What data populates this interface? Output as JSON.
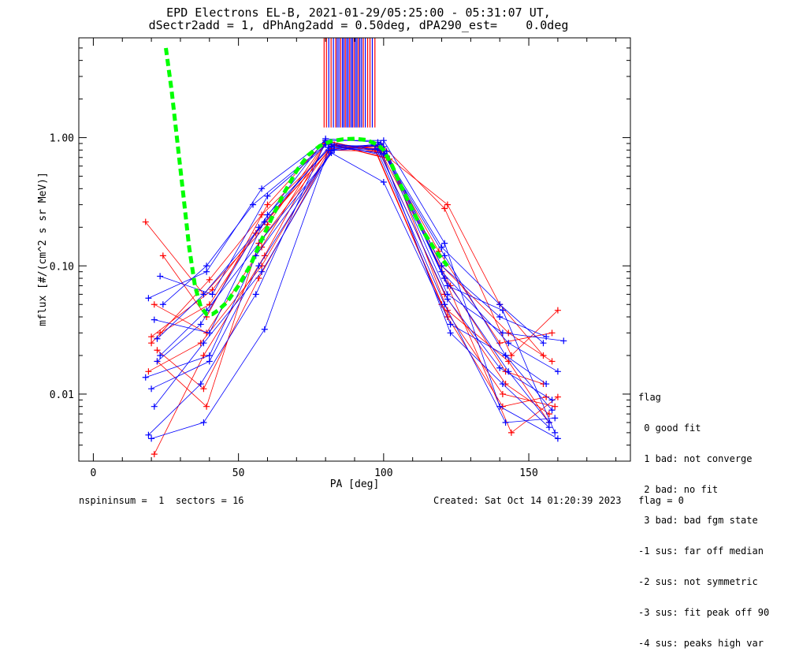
{
  "chart_data": {
    "type": "line",
    "title": "EPD Electrons EL-B, 2021-01-29/05:25:00 - 05:31:07 UT,",
    "subtitle": "dSectr2add = 1, dPhAng2add = 0.50deg, dPA290_est=    0.0deg",
    "xlabel": "PA [deg]",
    "ylabel": "mflux [#/(cm^2 s sr MeV)]",
    "xlim": [
      -5,
      185
    ],
    "ylim": [
      0.003,
      6
    ],
    "yscale": "log",
    "xticks": [
      0,
      50,
      100,
      150
    ],
    "yticks": [
      0.01,
      0.1,
      1.0
    ],
    "yticklabels": [
      "0.01",
      "0.10",
      "1.00"
    ],
    "xticklabels": [
      "0",
      "50",
      "100",
      "150"
    ],
    "colors": {
      "red": "#ff0000",
      "blue": "#0000ff",
      "green": "#00ff00"
    },
    "fit_curve": {
      "color": "#00ff00",
      "x": [
        25,
        27,
        29,
        31,
        33,
        35,
        37,
        39,
        41,
        43,
        46,
        50,
        54,
        58,
        62,
        66,
        70,
        74,
        78,
        82,
        86,
        90,
        94,
        98,
        100,
        103,
        106,
        110,
        114,
        118,
        122
      ],
      "y": [
        5.0,
        2.3,
        0.9,
        0.36,
        0.14,
        0.07,
        0.048,
        0.042,
        0.042,
        0.045,
        0.052,
        0.07,
        0.1,
        0.16,
        0.25,
        0.38,
        0.55,
        0.73,
        0.86,
        0.94,
        0.97,
        0.98,
        0.96,
        0.88,
        0.8,
        0.6,
        0.42,
        0.27,
        0.18,
        0.13,
        0.1
      ]
    },
    "series": [
      {
        "color": "#ff0000",
        "x": [
          18,
          38,
          60,
          80,
          100,
          121,
          144,
          160
        ],
        "y": [
          0.22,
          0.06,
          0.21,
          0.92,
          0.8,
          0.08,
          0.005,
          0.0095
        ]
      },
      {
        "color": "#ff0000",
        "x": [
          20,
          40,
          58,
          81,
          99,
          122,
          140,
          155
        ],
        "y": [
          0.025,
          0.078,
          0.25,
          0.8,
          0.78,
          0.3,
          0.05,
          0.02
        ]
      },
      {
        "color": "#ff0000",
        "x": [
          22,
          39,
          57,
          82,
          98,
          121,
          142,
          157
        ],
        "y": [
          0.018,
          0.008,
          0.15,
          0.85,
          0.84,
          0.06,
          0.012,
          0.007
        ]
      },
      {
        "color": "#ff0000",
        "x": [
          21,
          38,
          59,
          80,
          101,
          120,
          143,
          158
        ],
        "y": [
          0.0034,
          0.02,
          0.12,
          0.9,
          0.7,
          0.1,
          0.03,
          0.018
        ]
      },
      {
        "color": "#ff0000",
        "x": [
          23,
          40,
          56,
          83,
          97,
          122,
          141,
          156
        ],
        "y": [
          0.03,
          0.05,
          0.18,
          0.88,
          0.82,
          0.04,
          0.008,
          0.0095
        ]
      },
      {
        "color": "#ff0000",
        "x": [
          19,
          37,
          58,
          81,
          99,
          121,
          144,
          160
        ],
        "y": [
          0.015,
          0.025,
          0.1,
          0.78,
          0.9,
          0.28,
          0.02,
          0.045
        ]
      },
      {
        "color": "#ff0000",
        "x": [
          24,
          39,
          60,
          80,
          100,
          119,
          140,
          158
        ],
        "y": [
          0.12,
          0.04,
          0.3,
          0.95,
          0.75,
          0.13,
          0.025,
          0.03
        ]
      },
      {
        "color": "#ff0000",
        "x": [
          22,
          38,
          57,
          82,
          98,
          123,
          142,
          155
        ],
        "y": [
          0.022,
          0.011,
          0.08,
          0.82,
          0.86,
          0.07,
          0.015,
          0.012
        ]
      },
      {
        "color": "#ff0000",
        "x": [
          20,
          41,
          59,
          83,
          97,
          120,
          141,
          159
        ],
        "y": [
          0.028,
          0.065,
          0.22,
          0.87,
          0.8,
          0.05,
          0.01,
          0.008
        ]
      },
      {
        "color": "#ff0000",
        "x": [
          21,
          39,
          58,
          80,
          102,
          122,
          143,
          157
        ],
        "y": [
          0.05,
          0.03,
          0.14,
          0.91,
          0.68,
          0.045,
          0.018,
          0.006
        ]
      },
      {
        "color": "#0000ff",
        "x": [
          19,
          39,
          58,
          80,
          100,
          121,
          140,
          160
        ],
        "y": [
          0.056,
          0.09,
          0.4,
          0.95,
          0.95,
          0.15,
          0.008,
          0.0045
        ]
      },
      {
        "color": "#0000ff",
        "x": [
          20,
          38,
          59,
          81,
          99,
          122,
          141,
          159
        ],
        "y": [
          0.0045,
          0.006,
          0.032,
          0.8,
          0.9,
          0.07,
          0.045,
          0.005
        ]
      },
      {
        "color": "#0000ff",
        "x": [
          18,
          40,
          56,
          82,
          100,
          123,
          142,
          158
        ],
        "y": [
          0.0135,
          0.02,
          0.12,
          0.76,
          0.45,
          0.035,
          0.02,
          0.0075
        ]
      },
      {
        "color": "#0000ff",
        "x": [
          22,
          37,
          57,
          80,
          98,
          120,
          140,
          155
        ],
        "y": [
          0.018,
          0.035,
          0.2,
          0.98,
          0.92,
          0.14,
          0.05,
          0.025
        ]
      },
      {
        "color": "#0000ff",
        "x": [
          23,
          41,
          60,
          81,
          101,
          121,
          143,
          157
        ],
        "y": [
          0.083,
          0.06,
          0.35,
          0.9,
          0.72,
          0.08,
          0.015,
          0.006
        ]
      },
      {
        "color": "#0000ff",
        "x": [
          21,
          38,
          58,
          83,
          99,
          122,
          141,
          162
        ],
        "y": [
          0.008,
          0.025,
          0.09,
          0.85,
          0.88,
          0.06,
          0.03,
          0.026
        ]
      },
      {
        "color": "#0000ff",
        "x": [
          24,
          39,
          55,
          80,
          100,
          120,
          140,
          156
        ],
        "y": [
          0.05,
          0.1,
          0.3,
          0.88,
          0.85,
          0.1,
          0.04,
          0.028
        ]
      },
      {
        "color": "#0000ff",
        "x": [
          20,
          40,
          57,
          82,
          97,
          121,
          142,
          159
        ],
        "y": [
          0.011,
          0.018,
          0.1,
          0.79,
          0.87,
          0.05,
          0.006,
          0.0065
        ]
      },
      {
        "color": "#0000ff",
        "x": [
          22,
          38,
          59,
          81,
          99,
          123,
          141,
          157
        ],
        "y": [
          0.027,
          0.06,
          0.22,
          0.84,
          0.8,
          0.03,
          0.012,
          0.0055
        ]
      },
      {
        "color": "#0000ff",
        "x": [
          19,
          37,
          56,
          80,
          101,
          120,
          143,
          160
        ],
        "y": [
          0.0048,
          0.012,
          0.06,
          0.92,
          0.78,
          0.09,
          0.025,
          0.015
        ]
      },
      {
        "color": "#0000ff",
        "x": [
          23,
          39,
          58,
          83,
          98,
          122,
          140,
          158
        ],
        "y": [
          0.02,
          0.045,
          0.16,
          0.8,
          0.82,
          0.055,
          0.016,
          0.009
        ]
      },
      {
        "color": "#0000ff",
        "x": [
          21,
          40,
          60,
          82,
          100,
          121,
          142,
          156
        ],
        "y": [
          0.038,
          0.03,
          0.25,
          0.86,
          0.75,
          0.12,
          0.02,
          0.012
        ]
      }
    ],
    "marker_lines": {
      "x": [
        79.5,
        80.3,
        81.1,
        81.9,
        82.7,
        83.5,
        84.0,
        84.6,
        85.2,
        85.8,
        86.3,
        86.8,
        87.3,
        87.8,
        88.3,
        88.8,
        89.3,
        89.8,
        90.3,
        90.8,
        91.3,
        91.8,
        92.4,
        93.0,
        93.7,
        94.5,
        95.3,
        96.1,
        97.0
      ],
      "colors": [
        "#ff0000",
        "#ff0000",
        "#0000ff",
        "#ff0000",
        "#0000ff",
        "#ff0000",
        "#0000ff",
        "#0000ff",
        "#ff0000",
        "#0000ff",
        "#0000ff",
        "#ff0000",
        "#0000ff",
        "#0000ff",
        "#ff0000",
        "#0000ff",
        "#0000ff",
        "#ff0000",
        "#0000ff",
        "#0000ff",
        "#ff0000",
        "#0000ff",
        "#0000ff",
        "#ff0000",
        "#0000ff",
        "#ff0000",
        "#ff0000",
        "#0000ff",
        "#ff0000"
      ],
      "ymin": 1.2,
      "ymax": 6
    }
  },
  "legend": {
    "title": "flag",
    "entries": [
      " 0 good fit",
      " 1 bad: not converge",
      " 2 bad: no fit",
      " 3 bad: bad fgm state",
      "-1 sus: far off median",
      "-2 sus: not symmetric",
      "-3 sus: fit peak off 90",
      "-4 sus: peaks high var"
    ]
  },
  "footer": {
    "left": "nspininsum =  1  sectors = 16",
    "right": "Created: Sat Oct 14 01:20:39 2023   flag = 0"
  }
}
